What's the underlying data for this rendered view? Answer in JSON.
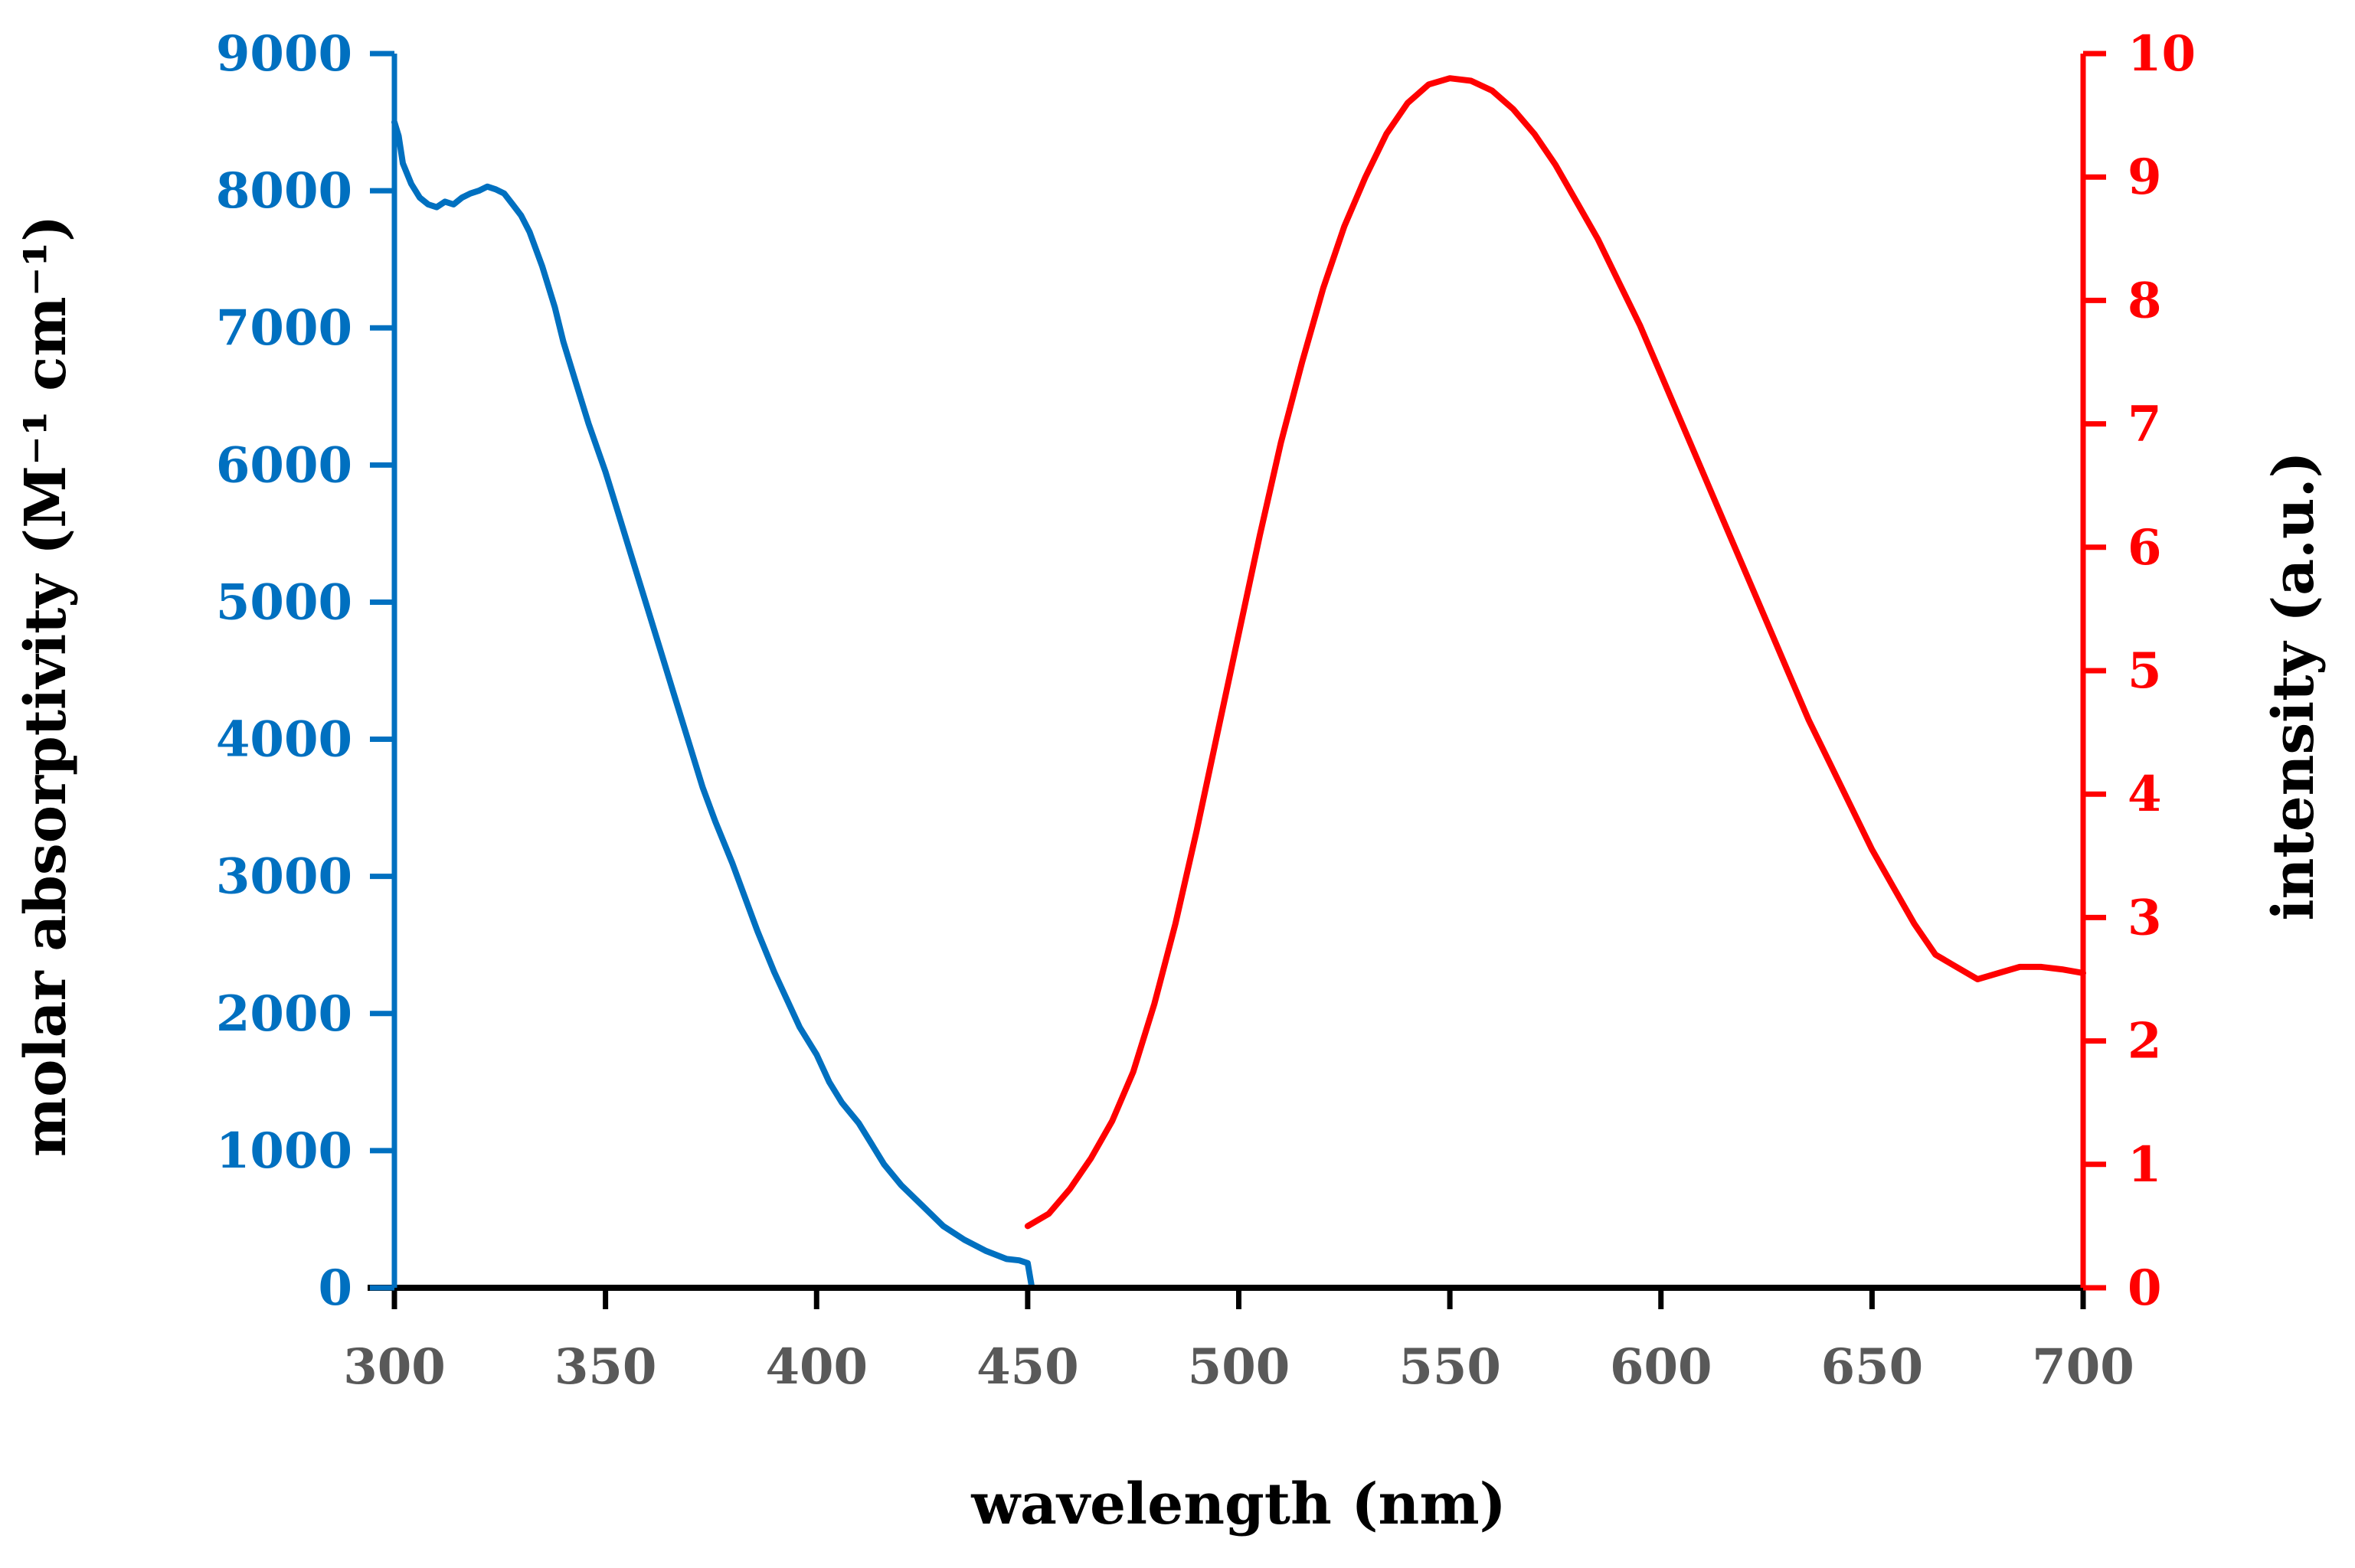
{
  "colors": {
    "absorption": "#0070C0",
    "emission": "#FF0000",
    "x_axis": "#000000",
    "x_ticks": "#595959",
    "axis_title": "#000000"
  },
  "chart_data": {
    "type": "line",
    "title": "",
    "xlabel": "wavelength (nm)",
    "ylabel_left": "molar absorptivity (M⁻¹ cm⁻¹)",
    "ylabel_right": "intensity (a.u.)",
    "xlim": [
      300,
      700
    ],
    "ylim_left": [
      0,
      9000
    ],
    "ylim_right": [
      0,
      10
    ],
    "x_ticks": [
      "300",
      "350",
      "400",
      "450",
      "500",
      "550",
      "600",
      "650",
      "700"
    ],
    "x_tick_values": [
      300,
      350,
      400,
      450,
      500,
      550,
      600,
      650,
      700
    ],
    "y_left_ticks": [
      "0",
      "1000",
      "2000",
      "3000",
      "4000",
      "5000",
      "6000",
      "7000",
      "8000",
      "9000"
    ],
    "y_left_tick_values": [
      0,
      1000,
      2000,
      3000,
      4000,
      5000,
      6000,
      7000,
      8000,
      9000
    ],
    "y_right_ticks": [
      "0",
      "1",
      "2",
      "3",
      "4",
      "5",
      "6",
      "7",
      "8",
      "9",
      "10"
    ],
    "y_right_tick_values": [
      0,
      1,
      2,
      3,
      4,
      5,
      6,
      7,
      8,
      9,
      10
    ],
    "grid": false,
    "series": [
      {
        "name": "molar absorptivity",
        "axis": "left",
        "color": "#0070C0",
        "x": [
          300,
          301,
          302,
          304,
          306,
          308,
          310,
          312,
          314,
          316,
          318,
          320,
          322,
          324,
          326,
          328,
          330,
          332,
          335,
          338,
          340,
          343,
          346,
          350,
          353,
          356,
          360,
          363,
          366,
          370,
          373,
          376,
          380,
          383,
          386,
          390,
          393,
          396,
          400,
          403,
          406,
          410,
          413,
          416,
          420,
          425,
          430,
          435,
          440,
          445,
          448,
          450,
          451,
          452,
          460,
          470
        ],
        "values": [
          8500,
          8400,
          8200,
          8050,
          7950,
          7900,
          7880,
          7920,
          7900,
          7950,
          7980,
          8000,
          8030,
          8010,
          7980,
          7900,
          7820,
          7700,
          7450,
          7150,
          6900,
          6600,
          6300,
          5950,
          5650,
          5350,
          4950,
          4650,
          4350,
          3950,
          3650,
          3400,
          3100,
          2850,
          2600,
          2300,
          2100,
          1900,
          1700,
          1500,
          1350,
          1200,
          1050,
          900,
          750,
          600,
          450,
          350,
          270,
          210,
          200,
          180,
          0,
          0,
          0,
          0
        ]
      },
      {
        "name": "intensity",
        "axis": "right",
        "color": "#FF0000",
        "x": [
          450,
          455,
          460,
          465,
          470,
          475,
          480,
          485,
          490,
          495,
          500,
          505,
          510,
          515,
          520,
          525,
          530,
          535,
          540,
          545,
          550,
          555,
          560,
          565,
          570,
          575,
          580,
          585,
          590,
          595,
          600,
          605,
          610,
          615,
          620,
          625,
          630,
          635,
          640,
          645,
          650,
          655,
          660,
          665,
          670,
          675,
          680,
          685,
          690,
          695,
          700
        ],
        "values": [
          0.5,
          0.6,
          0.8,
          1.05,
          1.35,
          1.75,
          2.3,
          2.95,
          3.7,
          4.5,
          5.3,
          6.1,
          6.85,
          7.5,
          8.1,
          8.6,
          9.0,
          9.35,
          9.6,
          9.75,
          9.8,
          9.78,
          9.7,
          9.55,
          9.35,
          9.1,
          8.8,
          8.5,
          8.15,
          7.8,
          7.4,
          7.0,
          6.6,
          6.2,
          5.8,
          5.4,
          5.0,
          4.6,
          4.25,
          3.9,
          3.55,
          3.25,
          2.95,
          2.7,
          2.6,
          2.5,
          2.55,
          2.6,
          2.6,
          2.58,
          2.55
        ]
      }
    ]
  }
}
